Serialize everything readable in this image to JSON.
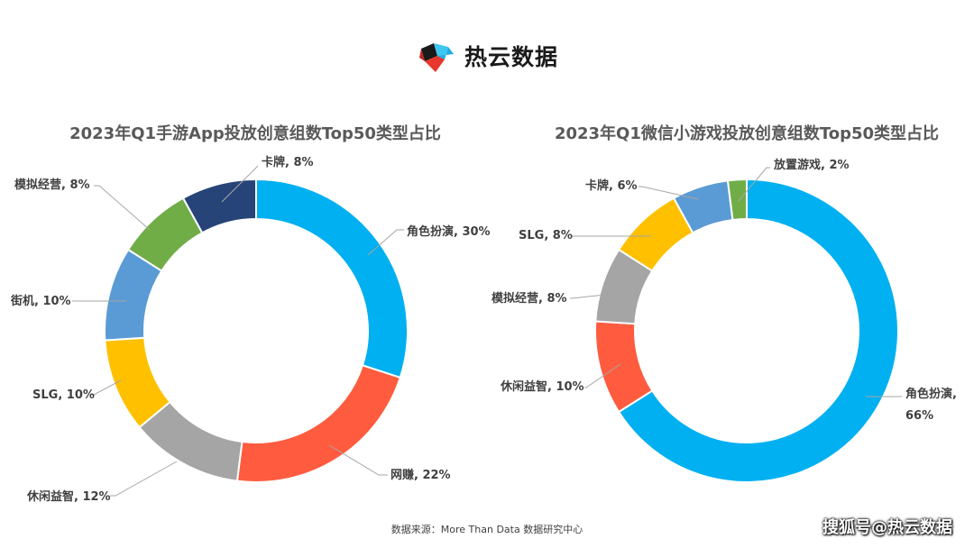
{
  "brand": {
    "name": "热云数据",
    "logo_icon": "reyun-logo-icon"
  },
  "source_note": "数据来源：More Than Data 数据研究中心",
  "watermark": "搜狐号@热云数据",
  "chart_data": [
    {
      "type": "pie",
      "donut": true,
      "title": "2023年Q1手游App投放创意组数Top50类型占比",
      "slices": [
        {
          "name": "角色扮演",
          "value": 30,
          "label": "角色扮演, 30%",
          "color": "#00B0F0"
        },
        {
          "name": "网赚",
          "value": 22,
          "label": "网赚, 22%",
          "color": "#FF5B3F"
        },
        {
          "name": "休闲益智",
          "value": 12,
          "label": "休闲益智, 12%",
          "color": "#A5A5A5"
        },
        {
          "name": "SLG",
          "value": 10,
          "label": "SLG, 10%",
          "color": "#FFC000"
        },
        {
          "name": "街机",
          "value": 10,
          "label": "街机, 10%",
          "color": "#5B9BD5"
        },
        {
          "name": "模拟经营",
          "value": 8,
          "label": "模拟经营, 8%",
          "color": "#70AD47"
        },
        {
          "name": "卡牌",
          "value": 8,
          "label": "卡牌, 8%",
          "color": "#264478"
        }
      ]
    },
    {
      "type": "pie",
      "donut": true,
      "title": "2023年Q1微信小游戏投放创意组数Top50类型占比",
      "slices": [
        {
          "name": "角色扮演",
          "value": 66,
          "label": [
            "角色扮演,",
            "66%"
          ],
          "color": "#00B0F0"
        },
        {
          "name": "休闲益智",
          "value": 10,
          "label": "休闲益智, 10%",
          "color": "#FF5B3F"
        },
        {
          "name": "模拟经营",
          "value": 8,
          "label": "模拟经营, 8%",
          "color": "#A5A5A5"
        },
        {
          "name": "SLG",
          "value": 8,
          "label": "SLG, 8%",
          "color": "#FFC000"
        },
        {
          "name": "卡牌",
          "value": 6,
          "label": "卡牌, 6%",
          "color": "#5B9BD5"
        },
        {
          "name": "放置游戏",
          "value": 2,
          "label": "放置游戏, 2%",
          "color": "#70AD47"
        }
      ]
    }
  ]
}
